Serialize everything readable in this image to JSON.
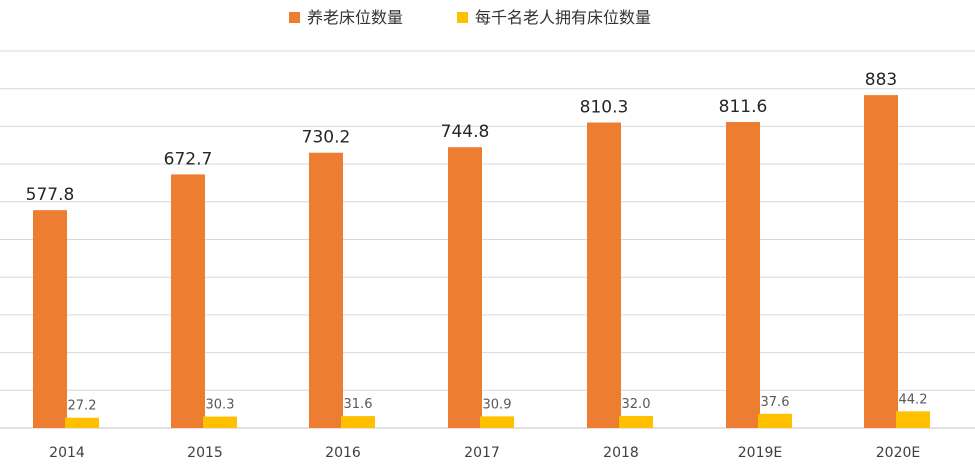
{
  "chart_data": {
    "type": "bar",
    "categories": [
      "2014",
      "2015",
      "2016",
      "2017",
      "2018",
      "2019E",
      "2020E"
    ],
    "series": [
      {
        "name": "养老床位数量",
        "color": "#ED7D31",
        "values": [
          577.8,
          672.7,
          730.2,
          744.8,
          810.3,
          811.6,
          883
        ],
        "labels": [
          "577.8",
          "672.7",
          "730.2",
          "744.8",
          "810.3",
          "811.6",
          "883"
        ]
      },
      {
        "name": "每千名老人拥有床位数量",
        "color": "#FFC000",
        "values": [
          27.2,
          30.3,
          31.6,
          30.9,
          32.0,
          37.6,
          44.2
        ],
        "labels": [
          "27.2",
          "30.3",
          "31.6",
          "30.9",
          "32.0",
          "37.6",
          "44.2"
        ]
      }
    ],
    "ylim": [
      0,
      1000
    ],
    "grid": true,
    "legend_position": "top-center",
    "gridline_color": "#D9D9D9"
  }
}
